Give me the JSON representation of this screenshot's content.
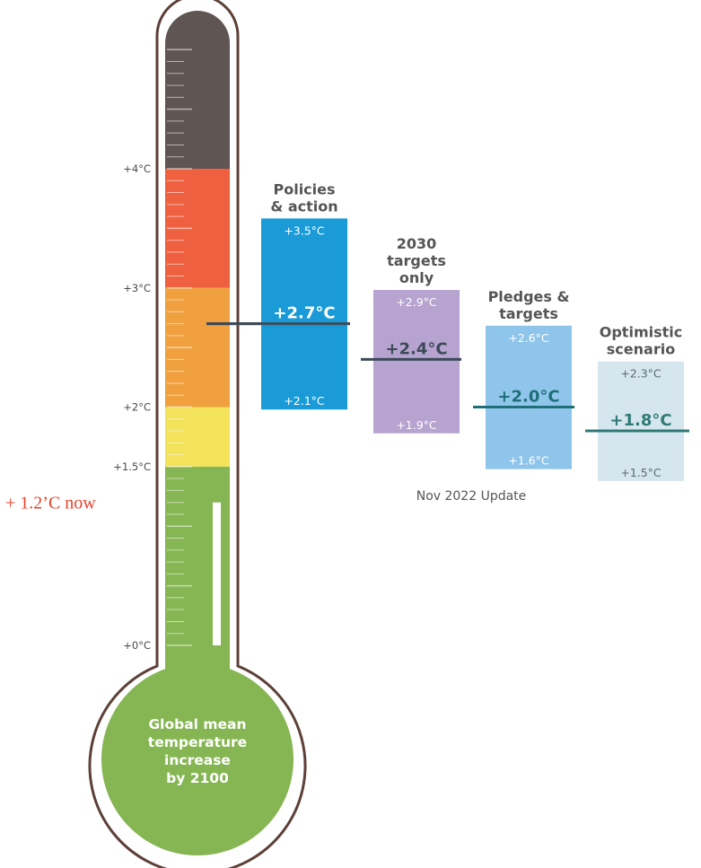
{
  "chart_data": {
    "type": "bar",
    "thermometer": {
      "caption_lines": [
        "Global mean",
        "temperature",
        "increase",
        "by 2100"
      ],
      "tick_labels": [
        {
          "label": "+4°C",
          "value": 4.0
        },
        {
          "label": "+3°C",
          "value": 3.0
        },
        {
          "label": "+2°C",
          "value": 2.0
        },
        {
          "label": "+1.5°C",
          "value": 1.5
        },
        {
          "label": "+0°C",
          "value": 0.0
        }
      ],
      "bands": [
        {
          "from": 0.0,
          "to": 1.5,
          "color": "#86b653"
        },
        {
          "from": 1.5,
          "to": 2.0,
          "color": "#f3e35a"
        },
        {
          "from": 2.0,
          "to": 3.0,
          "color": "#f0a03e"
        },
        {
          "from": 3.0,
          "to": 4.0,
          "color": "#ee6040"
        },
        {
          "from": 4.0,
          "to": 5.0,
          "color": "#5f5552"
        }
      ],
      "current_warming": 1.2,
      "current_label": "+ 1.2’C now",
      "policies_marker": 2.7
    },
    "scenarios": [
      {
        "name_lines": [
          "Policies",
          "& action"
        ],
        "high": 3.5,
        "central": 2.7,
        "low": 2.1,
        "high_label": "+3.5°C",
        "central_label": "+2.7°C",
        "low_label": "+2.1°C",
        "color": "#1a9bd7",
        "line_color": "#3c4a57",
        "text_color": "#ffffff"
      },
      {
        "name_lines": [
          "2030",
          "targets",
          "only"
        ],
        "high": 2.9,
        "central": 2.4,
        "low": 1.9,
        "high_label": "+2.9°C",
        "central_label": "+2.4°C",
        "low_label": "+1.9°C",
        "color": "#b6a3cf",
        "line_color": "#3c4a57",
        "text_color": "#ffffff"
      },
      {
        "name_lines": [
          "Pledges &",
          "targets"
        ],
        "high": 2.6,
        "central": 2.0,
        "low": 1.6,
        "high_label": "+2.6°C",
        "central_label": "+2.0°C",
        "low_label": "+1.6°C",
        "color": "#8fc5ea",
        "line_color": "#1e6f78",
        "text_color": "#ffffff"
      },
      {
        "name_lines": [
          "Optimistic",
          "scenario"
        ],
        "high": 2.3,
        "central": 1.8,
        "low": 1.5,
        "high_label": "+2.3°C",
        "central_label": "+1.8°C",
        "low_label": "+1.5°C",
        "color": "#d6e6ee",
        "line_color": "#2f7a76",
        "text_color": "#5d6b70"
      }
    ],
    "note": "Nov 2022 Update",
    "colors": {
      "outline": "#5d4038",
      "label_text": "#4a4a4a",
      "now_label": "#e8432b"
    }
  }
}
